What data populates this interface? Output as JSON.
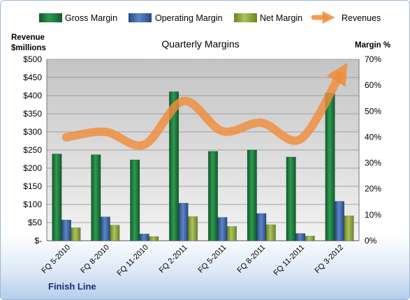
{
  "chart_data": {
    "type": "bar",
    "title": "Quarterly Margins",
    "footer": "Finish Line",
    "categories": [
      "FQ 5-2010",
      "FQ 8-2010",
      "FQ 11-2010",
      "FQ 2-2011",
      "FQ 5-2011",
      "FQ 8-2011",
      "FQ 11-2011",
      "FQ 3-2012"
    ],
    "series": [
      {
        "name": "Gross Margin",
        "axis": "right",
        "color": "#1e7a3c",
        "values": [
          33.5,
          33.2,
          31.2,
          57.5,
          34.5,
          35.0,
          32.3,
          57.0
        ]
      },
      {
        "name": "Operating Margin",
        "axis": "right",
        "color": "#3a64a8",
        "values": [
          8.0,
          9.2,
          2.6,
          14.5,
          9.0,
          10.5,
          2.8,
          15.2
        ]
      },
      {
        "name": "Net Margin",
        "axis": "right",
        "color": "#8faa3c",
        "values": [
          5.0,
          6.0,
          1.6,
          9.3,
          5.5,
          6.2,
          1.8,
          9.6
        ]
      },
      {
        "name": "Revenues",
        "axis": "left",
        "type": "line",
        "color": "#f08c3c",
        "values": [
          285,
          300,
          265,
          385,
          302,
          325,
          280,
          455
        ]
      }
    ],
    "y_left": {
      "label_line1": "Revenue",
      "label_line2": "$millions",
      "range": [
        0,
        500
      ],
      "ticks": [
        "$-",
        "$50",
        "$100",
        "$150",
        "$200",
        "$250",
        "$300",
        "$350",
        "$400",
        "$450",
        "$500"
      ]
    },
    "y_right": {
      "label": "Margin %",
      "range": [
        0,
        70
      ],
      "ticks": [
        "0%",
        "10%",
        "20%",
        "30%",
        "40%",
        "50%",
        "60%",
        "70%"
      ]
    },
    "legend_position": "top",
    "grid": true,
    "colors": {
      "plot_fill_top": "#c8c8c8",
      "plot_fill_bottom": "#efefef",
      "grid": "#8c8c8c",
      "footer": "#1f2a7a"
    }
  }
}
